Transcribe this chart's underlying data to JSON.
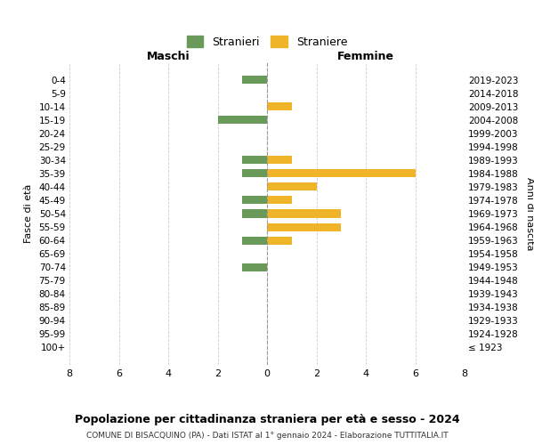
{
  "age_groups": [
    "100+",
    "95-99",
    "90-94",
    "85-89",
    "80-84",
    "75-79",
    "70-74",
    "65-69",
    "60-64",
    "55-59",
    "50-54",
    "45-49",
    "40-44",
    "35-39",
    "30-34",
    "25-29",
    "20-24",
    "15-19",
    "10-14",
    "5-9",
    "0-4"
  ],
  "birth_years": [
    "≤ 1923",
    "1924-1928",
    "1929-1933",
    "1934-1938",
    "1939-1943",
    "1944-1948",
    "1949-1953",
    "1954-1958",
    "1959-1963",
    "1964-1968",
    "1969-1973",
    "1974-1978",
    "1979-1983",
    "1984-1988",
    "1989-1993",
    "1994-1998",
    "1999-2003",
    "2004-2008",
    "2009-2013",
    "2014-2018",
    "2019-2023"
  ],
  "maschi": [
    0,
    0,
    0,
    0,
    0,
    0,
    1,
    0,
    1,
    0,
    1,
    1,
    0,
    1,
    1,
    0,
    0,
    2,
    0,
    0,
    1
  ],
  "femmine": [
    0,
    0,
    0,
    0,
    0,
    0,
    0,
    0,
    1,
    3,
    3,
    1,
    2,
    6,
    1,
    0,
    0,
    0,
    1,
    0,
    0
  ],
  "maschi_color": "#6a9a5a",
  "femmine_color": "#f0b429",
  "title": "Popolazione per cittadinanza straniera per età e sesso - 2024",
  "subtitle": "COMUNE DI BISACQUINO (PA) - Dati ISTAT al 1° gennaio 2024 - Elaborazione TUTTITALIA.IT",
  "xlabel_left": "Maschi",
  "xlabel_right": "Femmine",
  "ylabel_left": "Fasce di età",
  "ylabel_right": "Anni di nascita",
  "legend_maschi": "Stranieri",
  "legend_femmine": "Straniere",
  "xlim": 8,
  "background_color": "#ffffff",
  "grid_color": "#cccccc"
}
